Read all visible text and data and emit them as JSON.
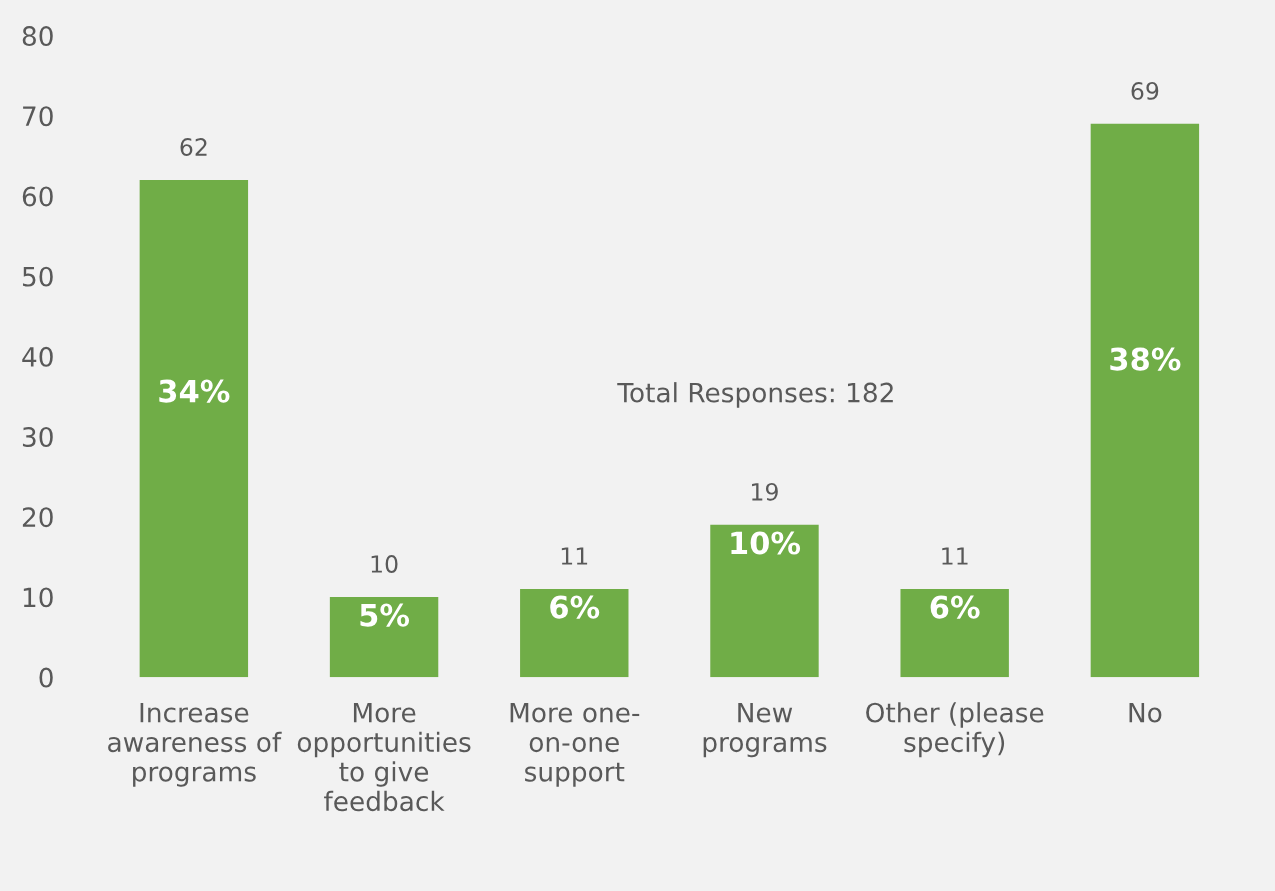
{
  "chart_data": {
    "type": "bar",
    "categories": [
      "Increase\nawareness of\nprograms",
      "More\nopportunities\nto give\nfeedback",
      "More one-\non-one\nsupport",
      "New\nprograms",
      "Other (please\nspecify)",
      "No"
    ],
    "values": [
      62,
      10,
      11,
      19,
      11,
      69
    ],
    "color": "#70ad47",
    "ylim": [
      0,
      80
    ],
    "yticks": [
      0,
      10,
      20,
      30,
      40,
      50,
      60,
      70,
      80
    ],
    "grid": false,
    "data_labels": true,
    "annotations": [
      "Total Responses: 182",
      "34%",
      "5%",
      "6%",
      "10%",
      "6%",
      "38%"
    ]
  }
}
